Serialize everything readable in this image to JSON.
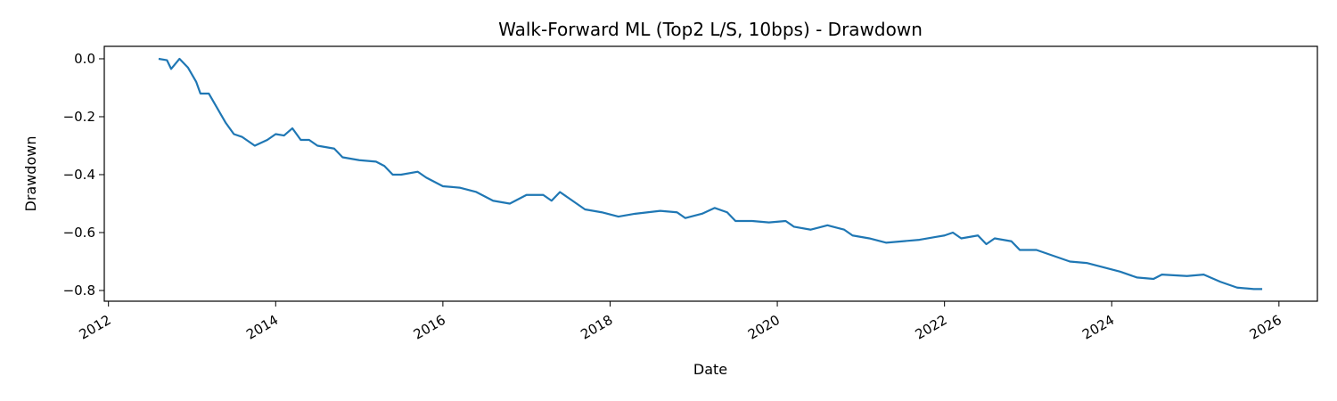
{
  "chart_data": {
    "type": "line",
    "title": "Walk-Forward ML (Top2 L/S, 10bps) - Drawdown",
    "x_label": "Date",
    "y_label": "Drawdown",
    "x": [
      2012.6,
      2012.7,
      2012.75,
      2012.85,
      2012.95,
      2013.05,
      2013.1,
      2013.2,
      2013.3,
      2013.4,
      2013.5,
      2013.6,
      2013.75,
      2013.9,
      2014.0,
      2014.1,
      2014.2,
      2014.3,
      2014.4,
      2014.5,
      2014.7,
      2014.8,
      2015.0,
      2015.2,
      2015.3,
      2015.4,
      2015.5,
      2015.7,
      2015.8,
      2016.0,
      2016.2,
      2016.4,
      2016.6,
      2016.8,
      2017.0,
      2017.2,
      2017.3,
      2017.4,
      2017.6,
      2017.7,
      2017.9,
      2018.1,
      2018.3,
      2018.6,
      2018.8,
      2018.9,
      2019.1,
      2019.25,
      2019.4,
      2019.5,
      2019.7,
      2019.9,
      2020.1,
      2020.2,
      2020.4,
      2020.6,
      2020.8,
      2020.9,
      2021.1,
      2021.3,
      2021.5,
      2021.7,
      2021.9,
      2022.0,
      2022.1,
      2022.2,
      2022.4,
      2022.5,
      2022.6,
      2022.8,
      2022.9,
      2023.1,
      2023.3,
      2023.5,
      2023.7,
      2023.9,
      2024.1,
      2024.3,
      2024.5,
      2024.6,
      2024.9,
      2025.1,
      2025.3,
      2025.5,
      2025.7,
      2025.8
    ],
    "series": [
      {
        "name": "Drawdown",
        "color": "#1f77b4",
        "values": [
          0.0,
          -0.005,
          -0.035,
          0.0,
          -0.03,
          -0.08,
          -0.12,
          -0.12,
          -0.17,
          -0.22,
          -0.26,
          -0.27,
          -0.3,
          -0.28,
          -0.26,
          -0.265,
          -0.24,
          -0.28,
          -0.28,
          -0.3,
          -0.31,
          -0.34,
          -0.35,
          -0.355,
          -0.37,
          -0.4,
          -0.4,
          -0.39,
          -0.41,
          -0.44,
          -0.445,
          -0.46,
          -0.49,
          -0.5,
          -0.47,
          -0.47,
          -0.49,
          -0.46,
          -0.5,
          -0.52,
          -0.53,
          -0.545,
          -0.535,
          -0.525,
          -0.53,
          -0.55,
          -0.535,
          -0.515,
          -0.53,
          -0.56,
          -0.56,
          -0.565,
          -0.56,
          -0.58,
          -0.59,
          -0.575,
          -0.59,
          -0.61,
          -0.62,
          -0.635,
          -0.63,
          -0.625,
          -0.615,
          -0.61,
          -0.6,
          -0.62,
          -0.61,
          -0.64,
          -0.62,
          -0.63,
          -0.66,
          -0.66,
          -0.68,
          -0.7,
          -0.705,
          -0.72,
          -0.735,
          -0.755,
          -0.76,
          -0.745,
          -0.75,
          -0.745,
          -0.77,
          -0.79,
          -0.795,
          -0.795
        ]
      }
    ],
    "xlim": [
      2011.95,
      2026.46
    ],
    "xticks": [
      2012,
      2014,
      2016,
      2018,
      2020,
      2022,
      2024,
      2026
    ],
    "ylim": [
      -0.837,
      0.043
    ],
    "yticks": [
      {
        "value": 0,
        "label": "0.0"
      },
      {
        "value": -0.2,
        "label": "−0.2"
      },
      {
        "value": -0.4,
        "label": "−0.4"
      },
      {
        "value": -0.6,
        "label": "−0.6"
      },
      {
        "value": -0.8,
        "label": "−0.8"
      }
    ]
  }
}
